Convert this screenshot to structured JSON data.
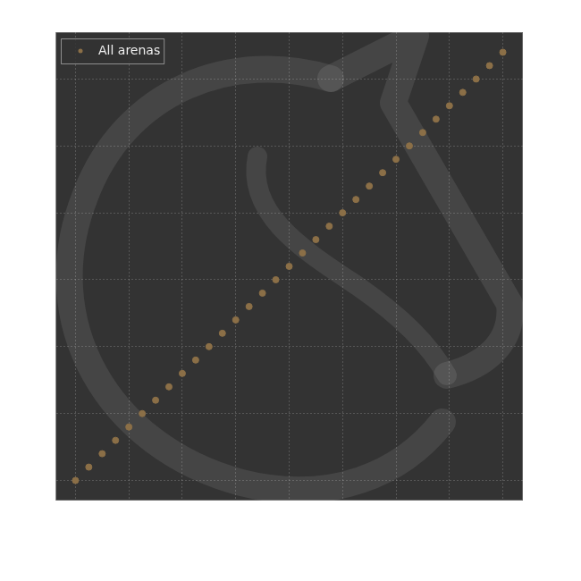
{
  "chart_data": {
    "type": "scatter",
    "x": [
      0,
      1,
      2,
      3,
      4,
      5,
      6,
      7,
      8,
      9,
      10,
      11,
      12,
      13,
      14,
      15,
      16,
      17,
      18,
      19,
      20,
      21,
      22,
      23,
      24,
      25,
      26,
      27,
      28,
      29,
      30,
      31,
      32
    ],
    "series": [
      {
        "name": "All arenas",
        "color": "#8b6f47",
        "marker": "circle",
        "values": [
          0,
          1,
          2,
          3,
          4,
          5,
          6,
          7,
          8,
          9,
          10,
          11,
          12,
          13,
          14,
          15,
          16,
          17,
          18,
          19,
          20,
          21,
          22,
          23,
          24,
          25,
          26,
          27,
          28,
          29,
          30,
          31,
          32
        ]
      }
    ],
    "xlim": [
      -1.5,
      33.5
    ],
    "ylim": [
      -1.5,
      33.5
    ],
    "xticks": [
      0,
      4,
      8,
      12,
      16,
      20,
      24,
      28,
      32
    ],
    "yticks": [
      0,
      5,
      10,
      15,
      20,
      25,
      30
    ],
    "grid": true,
    "legend": "top-left",
    "tick_labels": false
  }
}
